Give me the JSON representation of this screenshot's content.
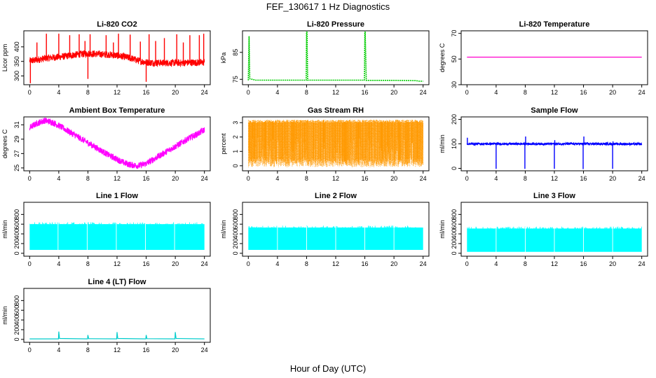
{
  "figure": {
    "title": "FEF_130617  1 Hz Diagnostics",
    "xlabel": "Hour of Day (UTC)"
  },
  "chart_data": [
    {
      "id": "co2",
      "type": "line",
      "title": "Li-820 CO2",
      "ylabel": "Licor ppm",
      "xlim": [
        -0.8,
        24.8
      ],
      "ylim": [
        270,
        455
      ],
      "xticks": [
        0,
        4,
        8,
        12,
        16,
        20,
        24
      ],
      "yticks": [
        300,
        350,
        400
      ],
      "color": "#ff0000",
      "style": "noise",
      "series": [
        {
          "x": [
            0,
            1,
            2,
            3,
            4,
            5,
            6,
            7,
            8,
            9,
            10,
            11,
            12,
            13,
            14,
            15,
            16,
            17,
            18,
            19,
            20,
            21,
            22,
            23,
            24
          ],
          "y": [
            352,
            355,
            360,
            363,
            365,
            368,
            372,
            375,
            377,
            376,
            374,
            373,
            370,
            366,
            360,
            352,
            347,
            345,
            345,
            345,
            345,
            345,
            346,
            346,
            346
          ],
          "spread": 12,
          "spikes": [
            {
              "x": 0.1,
              "y": 275
            },
            {
              "x": 1.0,
              "y": 415
            },
            {
              "x": 2.3,
              "y": 445
            },
            {
              "x": 4.0,
              "y": 445
            },
            {
              "x": 5.5,
              "y": 440
            },
            {
              "x": 6.8,
              "y": 443
            },
            {
              "x": 7.6,
              "y": 420
            },
            {
              "x": 8.0,
              "y": 290
            },
            {
              "x": 8.3,
              "y": 443
            },
            {
              "x": 10.5,
              "y": 440
            },
            {
              "x": 11.5,
              "y": 415
            },
            {
              "x": 12.2,
              "y": 445
            },
            {
              "x": 13.8,
              "y": 442
            },
            {
              "x": 15.2,
              "y": 418
            },
            {
              "x": 16.0,
              "y": 280
            },
            {
              "x": 16.4,
              "y": 443
            },
            {
              "x": 17.3,
              "y": 420
            },
            {
              "x": 18.5,
              "y": 430
            },
            {
              "x": 20.2,
              "y": 443
            },
            {
              "x": 21.1,
              "y": 415
            },
            {
              "x": 22.0,
              "y": 440
            },
            {
              "x": 23.3,
              "y": 440
            },
            {
              "x": 23.9,
              "y": 445
            }
          ]
        }
      ]
    },
    {
      "id": "pressure",
      "type": "line",
      "title": "Li-820 Pressure",
      "ylabel": "kPa",
      "xlim": [
        -0.8,
        24.8
      ],
      "ylim": [
        73,
        93
      ],
      "xticks": [
        0,
        4,
        8,
        12,
        16,
        20,
        24
      ],
      "yticks": [
        75,
        85
      ],
      "color": "#00cc00",
      "style": "dashed",
      "series": [
        {
          "x": [
            0,
            0.1,
            0.2,
            1,
            4,
            7.95,
            8.0,
            8.05,
            8.15,
            12,
            15.95,
            16.0,
            16.05,
            16.2,
            20,
            23,
            23.5,
            24
          ],
          "y": [
            74.6,
            91.0,
            75.2,
            74.7,
            74.7,
            74.7,
            92.5,
            92.5,
            74.7,
            74.7,
            74.7,
            92.5,
            92.5,
            74.6,
            74.6,
            74.5,
            74.3,
            74.3
          ]
        }
      ]
    },
    {
      "id": "temperature",
      "type": "line",
      "title": "Li-820 Temperature",
      "ylabel": "degrees C",
      "xlim": [
        -0.8,
        24.8
      ],
      "ylim": [
        30,
        72
      ],
      "xticks": [
        0,
        4,
        8,
        12,
        16,
        20,
        24
      ],
      "yticks": [
        30,
        50,
        70
      ],
      "color": "#ff00cc",
      "style": "solid",
      "series": [
        {
          "x": [
            0,
            24
          ],
          "y": [
            51.5,
            51.5
          ]
        }
      ]
    },
    {
      "id": "ambient",
      "type": "line",
      "title": "Ambient Box Temperature",
      "ylabel": "degrees C",
      "xlim": [
        -0.8,
        24.8
      ],
      "ylim": [
        24.6,
        32.1
      ],
      "xticks": [
        0,
        4,
        8,
        12,
        16,
        20,
        24
      ],
      "yticks": [
        25,
        27,
        29,
        31
      ],
      "color": "#ff00ff",
      "style": "noise",
      "series": [
        {
          "x": [
            0,
            1,
            2,
            3,
            4,
            5,
            6,
            7,
            8,
            9,
            10,
            11,
            12,
            13,
            14,
            15,
            16,
            17,
            18,
            19,
            20,
            21,
            22,
            23,
            24
          ],
          "y": [
            30.6,
            31.2,
            31.6,
            31.4,
            30.9,
            30.3,
            29.7,
            29.1,
            28.5,
            27.9,
            27.3,
            26.7,
            26.2,
            25.7,
            25.4,
            25.3,
            25.6,
            26.2,
            26.8,
            27.4,
            28.0,
            28.6,
            29.2,
            29.7,
            30.3
          ],
          "spread": 0.45
        }
      ]
    },
    {
      "id": "rh",
      "type": "line",
      "title": "Gas Stream RH",
      "ylabel": "percent",
      "xlim": [
        -0.8,
        24.8
      ],
      "ylim": [
        -0.35,
        3.4
      ],
      "xticks": [
        0,
        4,
        8,
        12,
        16,
        20,
        24
      ],
      "yticks": [
        0,
        1,
        2,
        3
      ],
      "color": "#ff9900",
      "style": "dense",
      "series": [
        {
          "x": [
            0,
            24
          ],
          "y": [
            1.5,
            1.5
          ],
          "low": -0.1,
          "high": 3.2
        }
      ]
    },
    {
      "id": "sample",
      "type": "line",
      "title": "Sample Flow",
      "ylabel": "ml/min",
      "xlim": [
        -0.8,
        24.8
      ],
      "ylim": [
        -10,
        210
      ],
      "xticks": [
        0,
        4,
        8,
        12,
        16,
        20,
        24
      ],
      "yticks": [
        0,
        100,
        200
      ],
      "color": "#0000ff",
      "style": "noise",
      "series": [
        {
          "x": [
            0,
            4,
            8,
            12,
            16,
            20,
            24
          ],
          "y": [
            100,
            100,
            100,
            100,
            100,
            100,
            99
          ],
          "spread": 5,
          "spikes": [
            {
              "x": 0.05,
              "y": 125
            },
            {
              "x": 4.0,
              "y": -2
            },
            {
              "x": 7.95,
              "y": -2
            },
            {
              "x": 8.05,
              "y": 130
            },
            {
              "x": 12.0,
              "y": -2
            },
            {
              "x": 12.05,
              "y": 115
            },
            {
              "x": 15.95,
              "y": -3
            },
            {
              "x": 16.05,
              "y": 130
            },
            {
              "x": 20.0,
              "y": -2
            },
            {
              "x": 20.05,
              "y": 110
            }
          ]
        }
      ]
    },
    {
      "id": "line1",
      "type": "area",
      "title": "Line 1 Flow",
      "ylabel": "ml/min",
      "xlim": [
        -0.8,
        24.8
      ],
      "ylim": [
        -60,
        1050
      ],
      "xticks": [
        0,
        4,
        8,
        12,
        16,
        20,
        24
      ],
      "yticks": [
        0,
        200,
        400,
        600,
        800
      ],
      "color": "#00ffff",
      "style": "band",
      "series": [
        {
          "x": [
            0,
            24
          ],
          "low": 70,
          "high": 600,
          "gaps": [
            3.9,
            7.9,
            11.9,
            15.9,
            19.9
          ]
        }
      ]
    },
    {
      "id": "line2",
      "type": "area",
      "title": "Line 2 Flow",
      "ylabel": "ml/min",
      "xlim": [
        -0.8,
        24.8
      ],
      "ylim": [
        -60,
        1050
      ],
      "xticks": [
        0,
        4,
        8,
        12,
        16,
        20,
        24
      ],
      "yticks": [
        0,
        200,
        400,
        600,
        800
      ],
      "color": "#00ffff",
      "style": "band",
      "series": [
        {
          "x": [
            0,
            24
          ],
          "low": 70,
          "high": 530,
          "gaps": [
            4.0,
            8.0,
            12.0,
            16.0,
            20.0
          ]
        }
      ]
    },
    {
      "id": "line3",
      "type": "area",
      "title": "Line 3 Flow",
      "ylabel": "ml/min",
      "xlim": [
        -0.8,
        24.8
      ],
      "ylim": [
        -60,
        1050
      ],
      "xticks": [
        0,
        4,
        8,
        12,
        16,
        20,
        24
      ],
      "yticks": [
        0,
        200,
        400,
        600,
        800
      ],
      "color": "#00ffff",
      "style": "band",
      "series": [
        {
          "x": [
            0,
            24
          ],
          "low": 30,
          "high": 510,
          "gaps": [
            4.0,
            8.0,
            12.0,
            16.0,
            20.0
          ]
        }
      ]
    },
    {
      "id": "line4",
      "type": "line",
      "title": "Line 4 (LT) Flow",
      "ylabel": "ml/min",
      "xlim": [
        -0.8,
        24.8
      ],
      "ylim": [
        -60,
        1050
      ],
      "xticks": [
        0,
        4,
        8,
        12,
        16,
        20,
        24
      ],
      "yticks": [
        0,
        200,
        400,
        600,
        800
      ],
      "color": "#00cccc",
      "style": "solid",
      "series": [
        {
          "x": [
            0,
            3.95,
            4.0,
            4.1,
            7.95,
            8.0,
            8.1,
            11.95,
            12.0,
            12.1,
            15.95,
            16.0,
            16.1,
            19.95,
            20.0,
            20.1,
            24
          ],
          "y": [
            10,
            10,
            160,
            20,
            10,
            90,
            15,
            10,
            150,
            20,
            10,
            90,
            15,
            10,
            150,
            20,
            10
          ]
        }
      ]
    }
  ]
}
